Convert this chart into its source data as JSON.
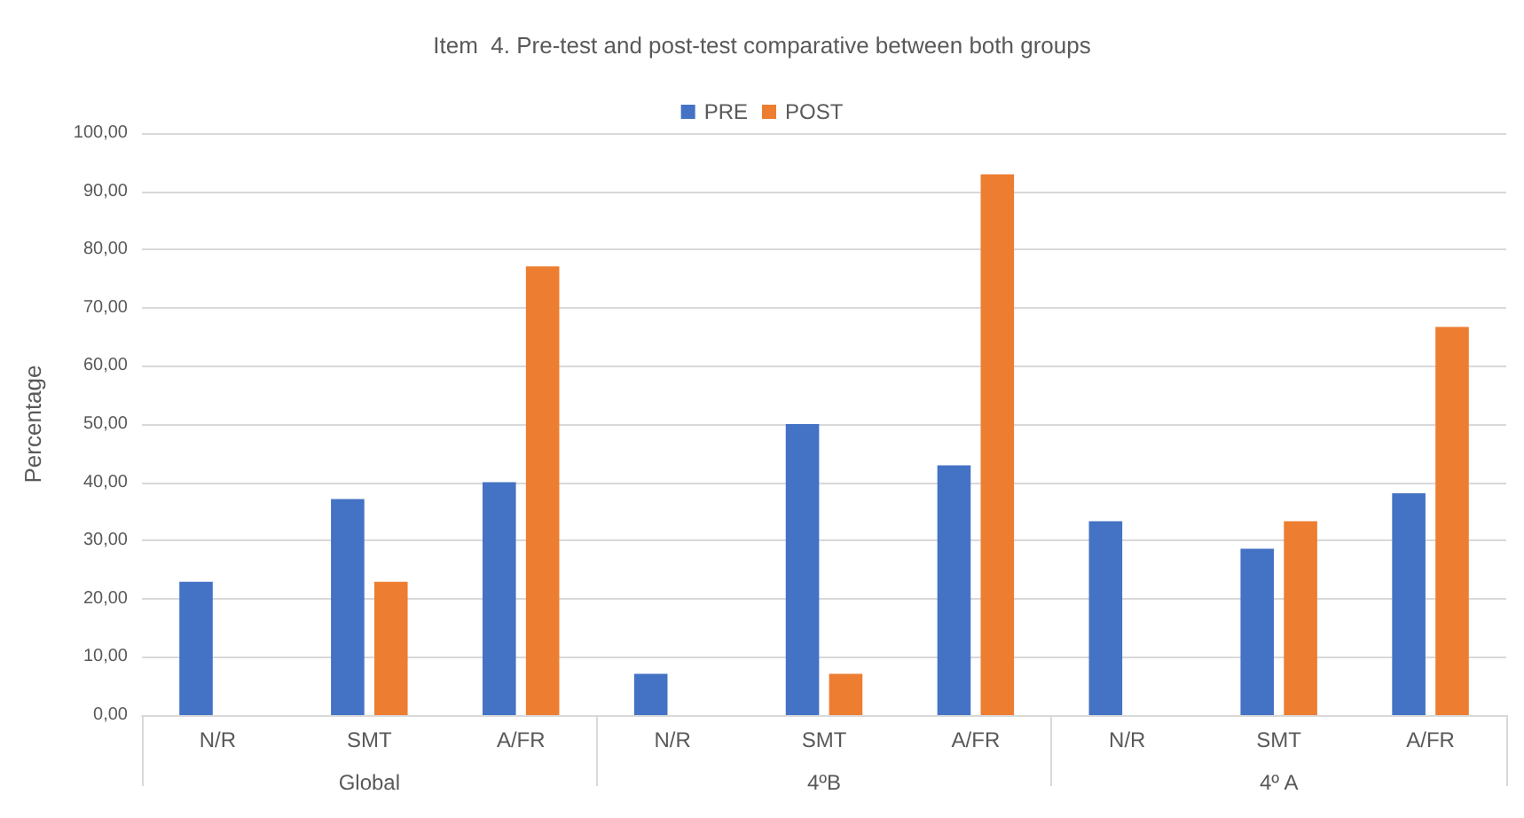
{
  "chart_data": {
    "type": "bar",
    "title": "Item  4. Pre-test and post-test comparative between both groups",
    "ylabel": "Percentage",
    "categories": [
      "N/R",
      "SMT",
      "A/FR",
      "N/R",
      "SMT",
      "A/FR",
      "N/R",
      "SMT",
      "A/FR"
    ],
    "annotations": [
      "Global",
      "4ºB",
      "4º A"
    ],
    "series": [
      {
        "name": "PRE",
        "color": "#4472c4",
        "values": [
          22.9,
          37.1,
          40.0,
          7.1,
          50.0,
          42.9,
          33.3,
          28.6,
          38.1
        ]
      },
      {
        "name": "POST",
        "color": "#ed7d31",
        "values": [
          0,
          22.9,
          77.1,
          0,
          7.1,
          92.9,
          0,
          33.3,
          66.7
        ]
      }
    ],
    "ylim": [
      0,
      100
    ],
    "yticks": [
      {
        "value": 0,
        "label": "0,00"
      },
      {
        "value": 10,
        "label": "10,00"
      },
      {
        "value": 20,
        "label": "20,00"
      },
      {
        "value": 30,
        "label": "30,00"
      },
      {
        "value": 40,
        "label": "40,00"
      },
      {
        "value": 50,
        "label": "50,00"
      },
      {
        "value": 60,
        "label": "60,00"
      },
      {
        "value": 70,
        "label": "70,00"
      },
      {
        "value": 80,
        "label": "80,00"
      },
      {
        "value": 90,
        "label": "90,00"
      },
      {
        "value": 100,
        "label": "100,00"
      }
    ],
    "grid": true,
    "legend": "top"
  }
}
